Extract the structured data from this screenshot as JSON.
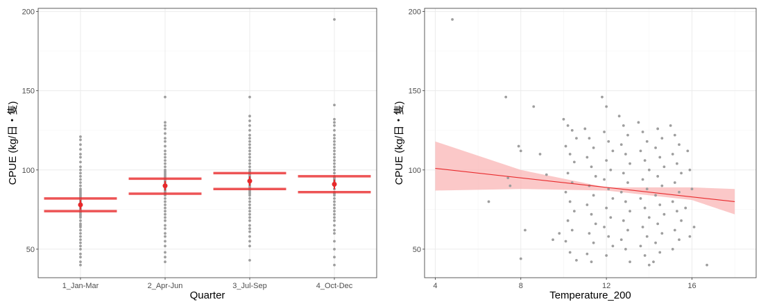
{
  "chart_data": [
    {
      "type": "scatter",
      "subtype": "strip-with-mean-ci",
      "xlabel": "Quarter",
      "ylabel": "CPUE (kg/日・隻)",
      "categories": [
        "1_Jan-Mar",
        "2_Apr-Jun",
        "3_Jul-Sep",
        "4_Oct-Dec"
      ],
      "ylim": [
        32,
        202
      ],
      "yticks": [
        50,
        100,
        150,
        200
      ],
      "grid": true,
      "colors": {
        "points": "#9e9e9e",
        "mean": "#e8292b",
        "ci": "#e8292b"
      },
      "points": [
        [
          40,
          42,
          45,
          47,
          50,
          52,
          54,
          56,
          58,
          60,
          62,
          64,
          65,
          66,
          68,
          70,
          71,
          72,
          73,
          74,
          75,
          76,
          77,
          78,
          79,
          80,
          81,
          82,
          83,
          84,
          85,
          86,
          87,
          88,
          90,
          92,
          94,
          96,
          98,
          100,
          102,
          105,
          108,
          110,
          113,
          116,
          119,
          121
        ],
        [
          42,
          45,
          48,
          52,
          55,
          58,
          60,
          63,
          65,
          68,
          70,
          72,
          74,
          76,
          78,
          80,
          82,
          84,
          85,
          86,
          87,
          88,
          89,
          90,
          91,
          92,
          93,
          94,
          95,
          96,
          97,
          98,
          99,
          100,
          102,
          104,
          106,
          108,
          110,
          112,
          115,
          118,
          120,
          123,
          126,
          128,
          130,
          146
        ],
        [
          43,
          52,
          55,
          58,
          61,
          63,
          65,
          68,
          70,
          72,
          74,
          76,
          78,
          80,
          82,
          84,
          85,
          86,
          87,
          88,
          89,
          90,
          91,
          92,
          93,
          94,
          95,
          96,
          97,
          98,
          99,
          100,
          102,
          104,
          106,
          108,
          110,
          112,
          114,
          116,
          118,
          120,
          122,
          125,
          128,
          131,
          134,
          146
        ],
        [
          40,
          45,
          50,
          55,
          60,
          62,
          65,
          68,
          70,
          72,
          74,
          76,
          78,
          80,
          82,
          84,
          85,
          86,
          88,
          90,
          91,
          92,
          93,
          94,
          95,
          96,
          98,
          100,
          102,
          104,
          106,
          108,
          110,
          112,
          114,
          116,
          118,
          120,
          122,
          125,
          128,
          130,
          132,
          141,
          195
        ]
      ],
      "means": [
        78,
        90,
        93,
        91
      ],
      "ci_lower": [
        74,
        85,
        88,
        86
      ],
      "ci_upper": [
        82,
        94.5,
        98,
        96
      ]
    },
    {
      "type": "scatter",
      "subtype": "scatter-with-linear-fit",
      "xlabel": "Temperature_200",
      "ylabel": "CPUE (kg/日・隻)",
      "xlim": [
        3.5,
        19
      ],
      "xticks": [
        4,
        8,
        12,
        16
      ],
      "ylim": [
        32,
        202
      ],
      "yticks": [
        50,
        100,
        150,
        200
      ],
      "grid": true,
      "colors": {
        "points": "#9e9e9e",
        "fit": "#e8292b",
        "band": "#f9b6b6"
      },
      "fit": {
        "x_start": 4,
        "y_start": 101,
        "x_end": 18,
        "y_end": 80
      },
      "band": {
        "x": [
          4,
          8,
          12,
          16,
          18
        ],
        "lower": [
          87,
          88,
          87,
          81,
          72
        ],
        "upper": [
          118,
          100,
          89,
          89,
          88
        ]
      },
      "points": [
        [
          4.8,
          195
        ],
        [
          7.3,
          146
        ],
        [
          8.6,
          140
        ],
        [
          7.9,
          115
        ],
        [
          8.0,
          112
        ],
        [
          8.9,
          110
        ],
        [
          7.4,
          95
        ],
        [
          7.5,
          90
        ],
        [
          9.2,
          97
        ],
        [
          6.5,
          80
        ],
        [
          8.2,
          62
        ],
        [
          9.5,
          56
        ],
        [
          9.8,
          60
        ],
        [
          8.0,
          44
        ],
        [
          10.0,
          132
        ],
        [
          10.2,
          128
        ],
        [
          10.4,
          125
        ],
        [
          10.6,
          120
        ],
        [
          10.1,
          115
        ],
        [
          10.3,
          110
        ],
        [
          10.5,
          105
        ],
        [
          10.2,
          98
        ],
        [
          10.4,
          92
        ],
        [
          10.1,
          86
        ],
        [
          10.3,
          80
        ],
        [
          10.5,
          74
        ],
        [
          10.2,
          68
        ],
        [
          10.4,
          62
        ],
        [
          10.1,
          55
        ],
        [
          10.3,
          48
        ],
        [
          10.6,
          43
        ],
        [
          11.0,
          126
        ],
        [
          11.2,
          120
        ],
        [
          11.4,
          114
        ],
        [
          11.1,
          108
        ],
        [
          11.3,
          102
        ],
        [
          11.5,
          96
        ],
        [
          11.2,
          90
        ],
        [
          11.4,
          84
        ],
        [
          11.1,
          78
        ],
        [
          11.3,
          72
        ],
        [
          11.5,
          66
        ],
        [
          11.2,
          60
        ],
        [
          11.4,
          54
        ],
        [
          11.1,
          47
        ],
        [
          11.3,
          42
        ],
        [
          11.8,
          146
        ],
        [
          12.0,
          140
        ],
        [
          11.9,
          124
        ],
        [
          12.1,
          118
        ],
        [
          12.3,
          112
        ],
        [
          12.0,
          106
        ],
        [
          12.2,
          100
        ],
        [
          11.9,
          94
        ],
        [
          12.1,
          88
        ],
        [
          12.3,
          82
        ],
        [
          12.0,
          76
        ],
        [
          12.2,
          70
        ],
        [
          11.9,
          64
        ],
        [
          12.1,
          58
        ],
        [
          12.3,
          52
        ],
        [
          12.0,
          46
        ],
        [
          12.6,
          134
        ],
        [
          12.8,
          128
        ],
        [
          13.0,
          122
        ],
        [
          12.7,
          116
        ],
        [
          12.9,
          110
        ],
        [
          13.1,
          104
        ],
        [
          12.8,
          98
        ],
        [
          13.0,
          92
        ],
        [
          12.7,
          86
        ],
        [
          12.9,
          80
        ],
        [
          13.1,
          74
        ],
        [
          12.8,
          68
        ],
        [
          13.0,
          62
        ],
        [
          12.7,
          56
        ],
        [
          12.9,
          50
        ],
        [
          13.1,
          42
        ],
        [
          13.5,
          130
        ],
        [
          13.7,
          124
        ],
        [
          13.9,
          118
        ],
        [
          13.6,
          112
        ],
        [
          13.8,
          106
        ],
        [
          14.0,
          100
        ],
        [
          13.7,
          94
        ],
        [
          13.9,
          88
        ],
        [
          13.6,
          82
        ],
        [
          13.8,
          76
        ],
        [
          14.0,
          70
        ],
        [
          13.7,
          64
        ],
        [
          13.9,
          58
        ],
        [
          13.6,
          52
        ],
        [
          13.8,
          46
        ],
        [
          14.0,
          40
        ],
        [
          14.4,
          126
        ],
        [
          14.6,
          120
        ],
        [
          14.3,
          114
        ],
        [
          14.5,
          108
        ],
        [
          14.7,
          102
        ],
        [
          14.4,
          96
        ],
        [
          14.6,
          90
        ],
        [
          14.3,
          84
        ],
        [
          14.5,
          78
        ],
        [
          14.7,
          72
        ],
        [
          14.4,
          66
        ],
        [
          14.6,
          60
        ],
        [
          14.3,
          54
        ],
        [
          14.5,
          48
        ],
        [
          14.2,
          42
        ],
        [
          15.0,
          128
        ],
        [
          15.2,
          122
        ],
        [
          15.4,
          116
        ],
        [
          15.1,
          110
        ],
        [
          15.3,
          104
        ],
        [
          15.5,
          98
        ],
        [
          15.2,
          92
        ],
        [
          15.4,
          86
        ],
        [
          15.1,
          80
        ],
        [
          15.3,
          74
        ],
        [
          15.5,
          68
        ],
        [
          15.2,
          62
        ],
        [
          15.4,
          56
        ],
        [
          15.1,
          50
        ],
        [
          15.8,
          112
        ],
        [
          15.9,
          100
        ],
        [
          16.0,
          88
        ],
        [
          15.7,
          76
        ],
        [
          16.1,
          64
        ],
        [
          15.9,
          58
        ],
        [
          16.7,
          40
        ]
      ]
    }
  ]
}
